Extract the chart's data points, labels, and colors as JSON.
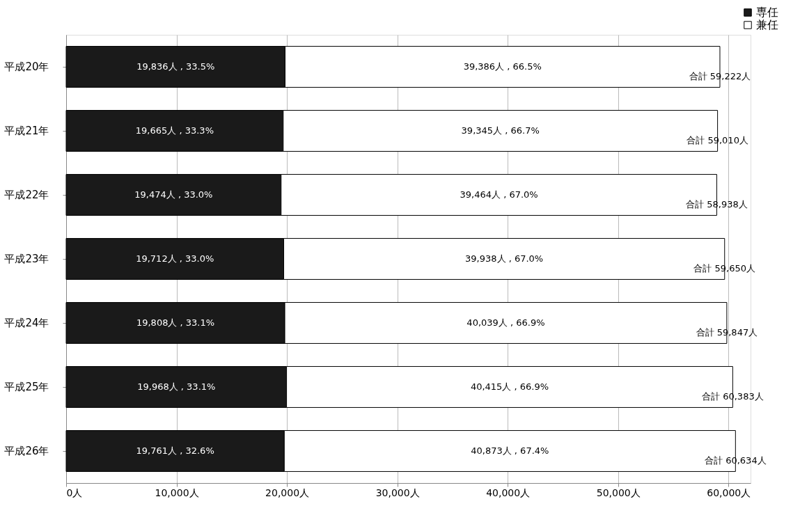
{
  "chart_data": {
    "type": "bar",
    "orientation": "horizontal",
    "stacked": true,
    "categories": [
      "平成20年",
      "平成21年",
      "平成22年",
      "平成23年",
      "平成24年",
      "平成25年",
      "平成26年"
    ],
    "series": [
      {
        "name": "専任",
        "color": "#1a1a1a",
        "values": [
          19836,
          19665,
          19474,
          19712,
          19808,
          19968,
          19761
        ],
        "value_labels": [
          "19,836人 , 33.5%",
          "19,665人 , 33.3%",
          "19,474人 , 33.0%",
          "19,712人 , 33.0%",
          "19,808人 , 33.1%",
          "19,968人 , 33.1%",
          "19,761人 , 32.6%"
        ]
      },
      {
        "name": "兼任",
        "color": "#ffffff",
        "values": [
          39386,
          39345,
          39464,
          39938,
          40039,
          40415,
          40873
        ],
        "value_labels": [
          "39,386人 , 66.5%",
          "39,345人 , 66.7%",
          "39,464人 , 67.0%",
          "39,938人 , 67.0%",
          "40,039人 , 66.9%",
          "40,415人 , 66.9%",
          "40,873人 , 67.4%"
        ]
      }
    ],
    "totals": [
      "合計  59,222人",
      "合計  59,010人",
      "合計  58,938人",
      "合計  59,650人",
      "合計  59,847人",
      "合計  60,383人",
      "合計  60,634人"
    ],
    "xlim": [
      0,
      62000
    ],
    "xticks": [
      {
        "value": 0,
        "label": "0人"
      },
      {
        "value": 10000,
        "label": "10,000人"
      },
      {
        "value": 20000,
        "label": "20,000人"
      },
      {
        "value": 30000,
        "label": "30,000人"
      },
      {
        "value": 40000,
        "label": "40,000人"
      },
      {
        "value": 50000,
        "label": "50,000人"
      },
      {
        "value": 60000,
        "label": "60,000人"
      }
    ],
    "grid": "x",
    "legend": "top right"
  }
}
